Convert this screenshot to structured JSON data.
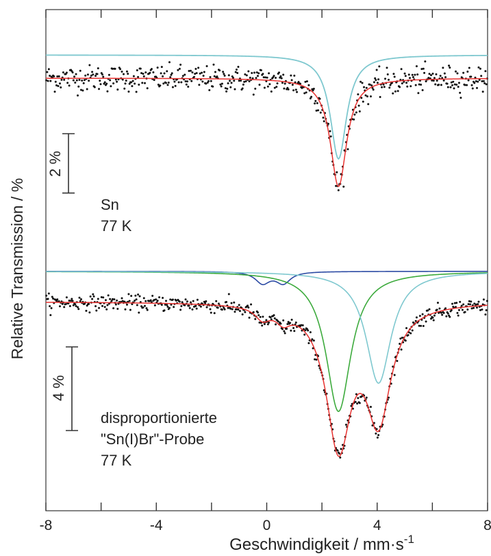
{
  "chart_data": {
    "type": "scatter",
    "xlabel": "Geschwindigkeit  / mm·s",
    "xlabel_superscript": "-1",
    "ylabel": "Relative Transmission / %",
    "xlim": [
      -8,
      8
    ],
    "x_ticks": [
      -8,
      -4,
      0,
      4,
      8
    ],
    "x_tick_labels": [
      "-8",
      "-4",
      "0",
      "4",
      "8"
    ],
    "grid": false,
    "panels": [
      {
        "id": "top",
        "labels": [
          "Sn",
          "77 K"
        ],
        "scale_bar": "2 %",
        "scale_bar_percent": 2,
        "baseline": 0,
        "ylim": [
          -3.9,
          0.8
        ],
        "data_points": {
          "color": "#111111",
          "noise_percent": 0.22,
          "count": 520
        },
        "components": [
          {
            "name": "fit",
            "color": "#e8312f",
            "depth": 3.65,
            "center": 2.6,
            "hwhm": 0.36,
            "offset": 0
          },
          {
            "name": "singlet",
            "color": "#7ec8cf",
            "depth": 3.5,
            "center": 2.6,
            "hwhm": 0.36,
            "offset": 0.78
          }
        ]
      },
      {
        "id": "bottom",
        "labels": [
          "disproportionierte",
          "\"Sn(I)Br\"-Probe",
          "77 K"
        ],
        "scale_bar": "4 %",
        "scale_bar_percent": 4,
        "baseline": 0,
        "ylim": [
          -7.9,
          1.5
        ],
        "data_points": {
          "color": "#111111",
          "noise_percent": 0.18,
          "count": 520
        },
        "offset_components": 1.45,
        "components": [
          {
            "name": "blue-doublet",
            "color": "#2b4aa3",
            "lines": [
              {
                "depth": 0.55,
                "center": -0.15,
                "hwhm": 0.32
              },
              {
                "depth": 0.55,
                "center": 0.6,
                "hwhm": 0.32
              }
            ]
          },
          {
            "name": "green-singlet",
            "color": "#3caa3c",
            "lines": [
              {
                "depth": 6.7,
                "center": 2.6,
                "hwhm": 0.55
              }
            ]
          },
          {
            "name": "cyan-singlet",
            "color": "#7ec8cf",
            "lines": [
              {
                "depth": 5.35,
                "center": 4.05,
                "hwhm": 0.55
              }
            ]
          }
        ],
        "fit_color": "#e8312f"
      }
    ]
  }
}
